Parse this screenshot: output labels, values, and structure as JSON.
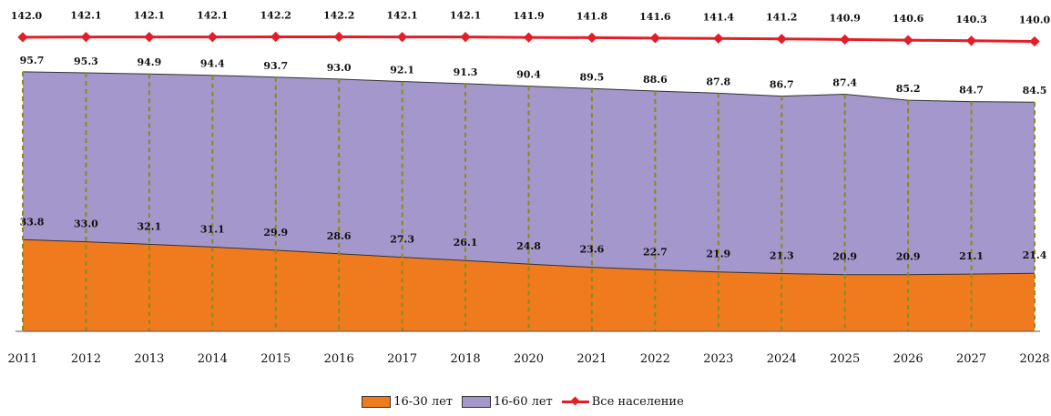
{
  "chart_data": {
    "type": "area",
    "categories": [
      "2011",
      "2012",
      "2013",
      "2014",
      "2015",
      "2016",
      "2017",
      "2018",
      "2020",
      "2021",
      "2022",
      "2023",
      "2024",
      "2025",
      "2026",
      "2027",
      "2028"
    ],
    "series": [
      {
        "name": "16-30 лет",
        "kind": "area",
        "color": "#f07b1f",
        "values": [
          33.8,
          33.0,
          32.1,
          31.1,
          29.9,
          28.6,
          27.3,
          26.1,
          24.8,
          23.6,
          22.7,
          21.9,
          21.3,
          20.9,
          20.9,
          21.1,
          21.4
        ],
        "labels": [
          "33.8",
          "33.0",
          "32.1",
          "31.1",
          "29.9",
          "28.6",
          "27.3",
          "26.1",
          "24.8",
          "23.6",
          "22.7",
          "21.9",
          "21.3",
          "20.9",
          "20.9",
          "21.1",
          "21.4"
        ]
      },
      {
        "name": "16-60 лет",
        "kind": "area",
        "color": "#a397cb",
        "values": [
          95.7,
          95.3,
          94.9,
          94.4,
          93.7,
          93.0,
          92.1,
          91.3,
          90.4,
          89.5,
          88.6,
          87.8,
          86.7,
          87.4,
          85.2,
          84.7,
          84.5
        ],
        "labels": [
          "95.7",
          "95.3",
          "94.9",
          "94.4",
          "93.7",
          "93.0",
          "92.1",
          "91.3",
          "90.4",
          "89.5",
          "88.6",
          "87.8",
          "86.7",
          "87.4",
          "85.2",
          "84.7",
          "84.5"
        ]
      },
      {
        "name": "Все население",
        "kind": "line",
        "color": "#e41e26",
        "values": [
          142.0,
          142.1,
          142.1,
          142.1,
          142.2,
          142.2,
          142.1,
          142.1,
          141.9,
          141.8,
          141.6,
          141.4,
          141.2,
          140.9,
          140.6,
          140.3,
          140.0
        ],
        "labels": [
          "142.0",
          "142.1",
          "142.1",
          "142.1",
          "142.2",
          "142.2",
          "142.1",
          "142.1",
          "141.9",
          "141.8",
          "141.6",
          "141.4",
          "141.2",
          "140.9",
          "140.6",
          "140.3",
          "140.0"
        ]
      }
    ],
    "legend_position": "bottom-center",
    "gridlines": "vertical dashed olive lines at each category",
    "title": "",
    "xlabel": "",
    "ylabel": ""
  }
}
